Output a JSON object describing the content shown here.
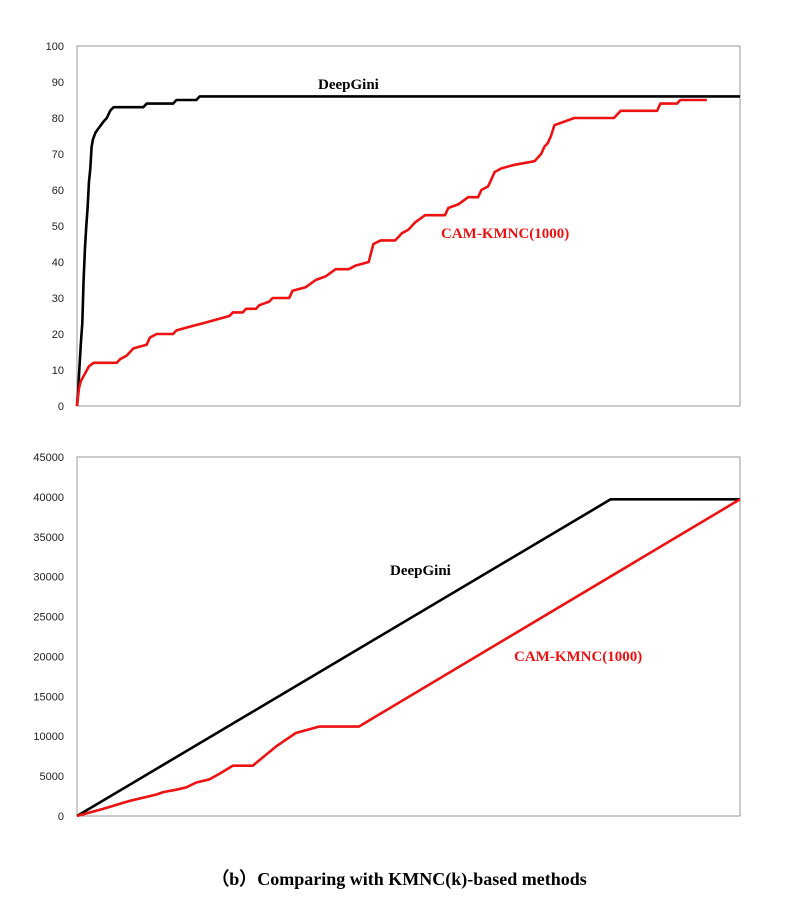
{
  "caption": "（b）Comparing with KMNC(k)-based methods",
  "chart_data": [
    {
      "type": "line",
      "title": "",
      "xlabel": "",
      "ylabel": "",
      "xlim": [
        0,
        1000
      ],
      "ylim": [
        0,
        100
      ],
      "yticks": [
        "0",
        "10",
        "20",
        "30",
        "40",
        "50",
        "60",
        "70",
        "80",
        "90",
        "100"
      ],
      "grid": false,
      "series": [
        {
          "name": "DeepGini",
          "color": "#000000",
          "points": [
            [
              0,
              0
            ],
            [
              2,
              5
            ],
            [
              4,
              12
            ],
            [
              6,
              18
            ],
            [
              8,
              23
            ],
            [
              10,
              35
            ],
            [
              12,
              44
            ],
            [
              14,
              50
            ],
            [
              16,
              55
            ],
            [
              18,
              62
            ],
            [
              20,
              66
            ],
            [
              22,
              72
            ],
            [
              24,
              74
            ],
            [
              26,
              75
            ],
            [
              28,
              76
            ],
            [
              32,
              77
            ],
            [
              36,
              78
            ],
            [
              40,
              79
            ],
            [
              45,
              80
            ],
            [
              50,
              82
            ],
            [
              55,
              83
            ],
            [
              100,
              83
            ],
            [
              105,
              84
            ],
            [
              145,
              84
            ],
            [
              150,
              85
            ],
            [
              180,
              85
            ],
            [
              185,
              86
            ],
            [
              1000,
              86
            ]
          ]
        },
        {
          "name": "CAM-KMNC(1000)",
          "color": "#ee1111",
          "points": [
            [
              0,
              0
            ],
            [
              3,
              5
            ],
            [
              6,
              7
            ],
            [
              12,
              9
            ],
            [
              18,
              11
            ],
            [
              25,
              12
            ],
            [
              60,
              12
            ],
            [
              65,
              13
            ],
            [
              75,
              14
            ],
            [
              85,
              16
            ],
            [
              105,
              17
            ],
            [
              110,
              19
            ],
            [
              120,
              20
            ],
            [
              145,
              20
            ],
            [
              150,
              21
            ],
            [
              170,
              22
            ],
            [
              190,
              23
            ],
            [
              210,
              24
            ],
            [
              230,
              25
            ],
            [
              235,
              26
            ],
            [
              250,
              26
            ],
            [
              255,
              27
            ],
            [
              270,
              27
            ],
            [
              275,
              28
            ],
            [
              290,
              29
            ],
            [
              295,
              30
            ],
            [
              320,
              30
            ],
            [
              325,
              32
            ],
            [
              345,
              33
            ],
            [
              360,
              35
            ],
            [
              375,
              36
            ],
            [
              390,
              38
            ],
            [
              410,
              38
            ],
            [
              420,
              39
            ],
            [
              440,
              40
            ],
            [
              447,
              45
            ],
            [
              458,
              46
            ],
            [
              480,
              46
            ],
            [
              490,
              48
            ],
            [
              500,
              49
            ],
            [
              510,
              51
            ],
            [
              525,
              53
            ],
            [
              555,
              53
            ],
            [
              560,
              55
            ],
            [
              575,
              56
            ],
            [
              590,
              58
            ],
            [
              605,
              58
            ],
            [
              610,
              60
            ],
            [
              620,
              61
            ],
            [
              625,
              63
            ],
            [
              630,
              65
            ],
            [
              640,
              66
            ],
            [
              660,
              67
            ],
            [
              690,
              68
            ],
            [
              700,
              70
            ],
            [
              705,
              72
            ],
            [
              710,
              73
            ],
            [
              715,
              75
            ],
            [
              720,
              78
            ],
            [
              735,
              79
            ],
            [
              750,
              80
            ],
            [
              810,
              80
            ],
            [
              815,
              81
            ],
            [
              820,
              82
            ],
            [
              875,
              82
            ],
            [
              880,
              84
            ],
            [
              905,
              84
            ],
            [
              910,
              85
            ],
            [
              950,
              85
            ]
          ]
        }
      ],
      "annotations": [
        {
          "text": "DeepGini",
          "color": "#000000"
        },
        {
          "text": "CAM-KMNC(1000)",
          "color": "#ee1111"
        }
      ]
    },
    {
      "type": "line",
      "title": "",
      "xlabel": "",
      "ylabel": "",
      "xlim": [
        0,
        1000
      ],
      "ylim": [
        0,
        45000
      ],
      "yticks": [
        "0",
        "5000",
        "10000",
        "15000",
        "20000",
        "25000",
        "30000",
        "35000",
        "40000",
        "45000"
      ],
      "grid": false,
      "series": [
        {
          "name": "DeepGini",
          "color": "#000000",
          "points": [
            [
              0,
              0
            ],
            [
              805,
              39700
            ],
            [
              1000,
              39700
            ]
          ]
        },
        {
          "name": "CAM-KMNC(1000)",
          "color": "#ee1111",
          "points": [
            [
              0,
              0
            ],
            [
              40,
              900
            ],
            [
              80,
              1900
            ],
            [
              120,
              2700
            ],
            [
              130,
              3000
            ],
            [
              150,
              3300
            ],
            [
              165,
              3600
            ],
            [
              180,
              4200
            ],
            [
              200,
              4600
            ],
            [
              215,
              5300
            ],
            [
              235,
              6300
            ],
            [
              265,
              6300
            ],
            [
              300,
              8700
            ],
            [
              330,
              10400
            ],
            [
              365,
              11200
            ],
            [
              425,
              11200
            ],
            [
              1000,
              39700
            ]
          ]
        }
      ],
      "annotations": [
        {
          "text": "DeepGini",
          "color": "#000000"
        },
        {
          "text": "CAM-KMNC(1000)",
          "color": "#ee1111"
        }
      ]
    }
  ]
}
